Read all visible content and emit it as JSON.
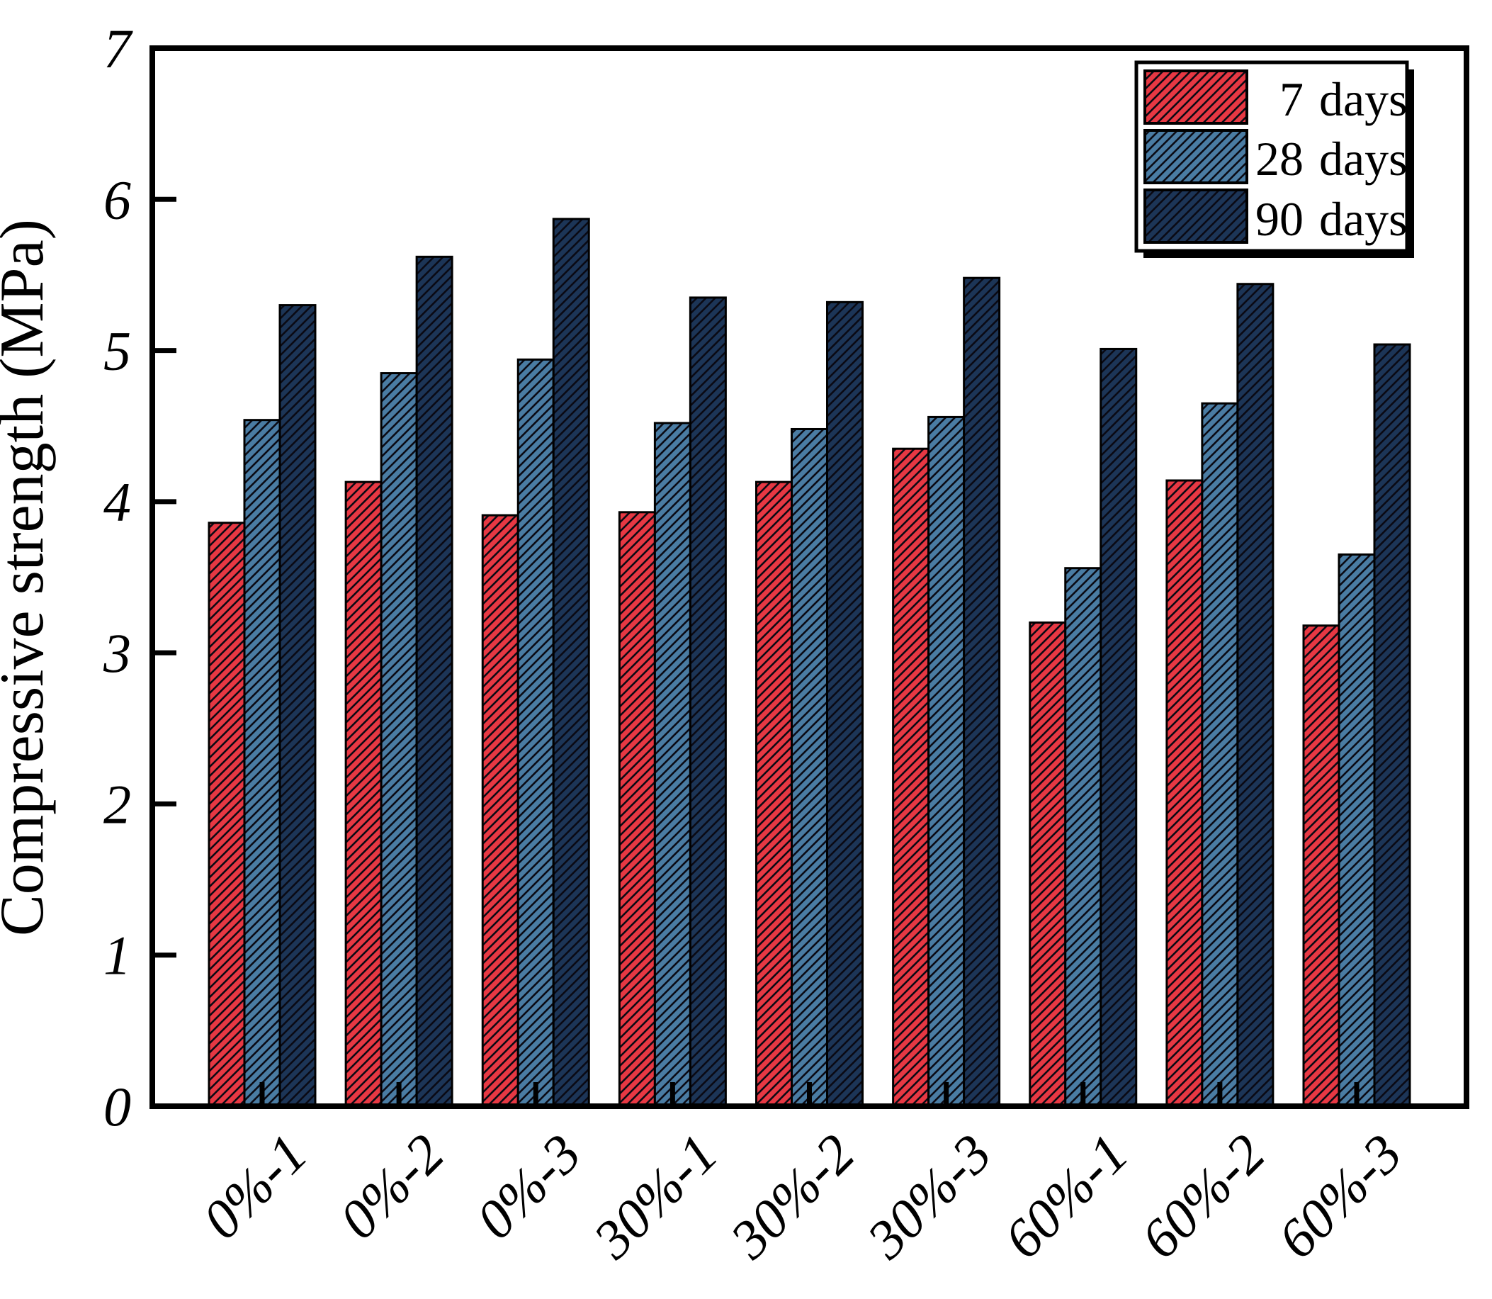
{
  "chart_data": {
    "type": "bar",
    "title": "",
    "xlabel": "",
    "ylabel": "Compressive strength (MPa)",
    "ylim": [
      0,
      7
    ],
    "yticks": [
      0,
      1,
      2,
      3,
      4,
      5,
      6,
      7
    ],
    "grid": false,
    "legend_position": "top-right",
    "x_tick_rotation_deg": 45,
    "hatch_style": "diagonal-forward-slash",
    "hatch_color": "#0a0a14",
    "bar_edge_color": "#000000",
    "axis_color": "#000000",
    "background_color": "#ffffff",
    "categories": [
      "0%-1",
      "0%-2",
      "0%-3",
      "30%-1",
      "30%-2",
      "30%-3",
      "60%-1",
      "60%-2",
      "60%-3"
    ],
    "series": [
      {
        "name": "7 days",
        "color": "#E73843",
        "values": [
          3.86,
          4.13,
          3.91,
          3.93,
          4.13,
          4.35,
          3.2,
          4.14,
          3.18
        ]
      },
      {
        "name": "28 days",
        "color": "#4A7CA3",
        "values": [
          4.54,
          4.85,
          4.94,
          4.52,
          4.48,
          4.56,
          3.56,
          4.65,
          3.65
        ]
      },
      {
        "name": "90 days",
        "color": "#1C3557",
        "values": [
          5.3,
          5.62,
          5.87,
          5.35,
          5.32,
          5.48,
          5.01,
          5.44,
          5.04
        ]
      }
    ]
  }
}
